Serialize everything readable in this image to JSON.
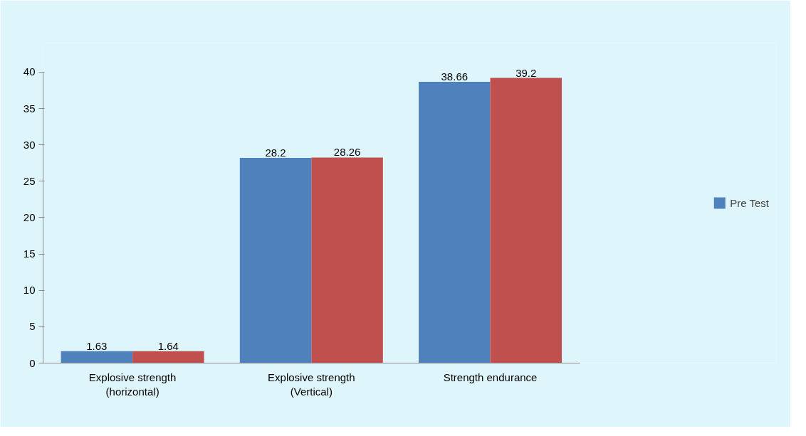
{
  "chart_data": {
    "type": "bar",
    "categories": [
      "Explosive strength\n(horizontal)",
      "Explosive strength\n(Vertical)",
      "Strength endurance"
    ],
    "series": [
      {
        "name": "Pre Test",
        "color": "#4f81bd",
        "values": [
          1.63,
          28.2,
          38.66
        ]
      },
      {
        "color": "#c0504d",
        "values": [
          1.64,
          28.26,
          39.2
        ]
      }
    ],
    "ylim": [
      0,
      40
    ],
    "yticks": [
      0,
      5,
      10,
      15,
      20,
      25,
      30,
      35,
      40
    ],
    "data_labels": true,
    "grid": false,
    "legend": "right"
  }
}
